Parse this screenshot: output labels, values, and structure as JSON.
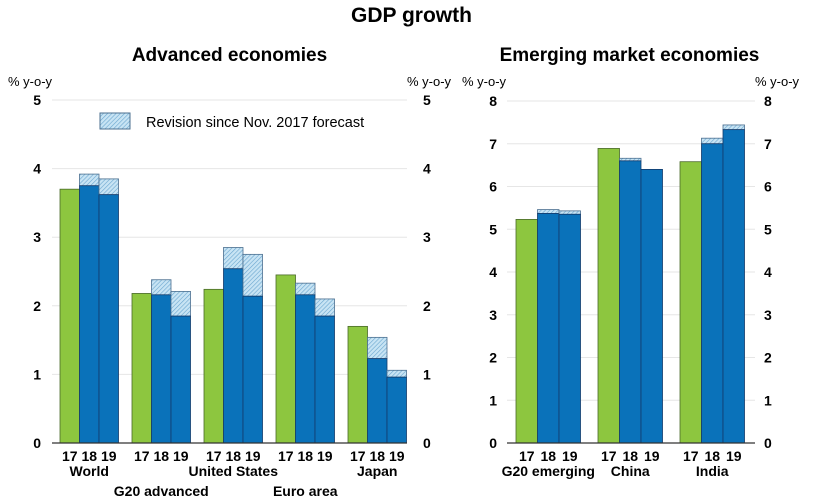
{
  "title": "GDP growth",
  "colors": {
    "actual_2017": "#8dc63f",
    "forecast": "#0a72ba",
    "forecast_border": "#123a6b",
    "revision": "#c8e4f4",
    "revision_hatch": "#6aa6cf",
    "grid": "#e6e6e6"
  },
  "legend": {
    "label": "Revision since Nov. 2017 forecast"
  },
  "chart_data": [
    {
      "type": "bar",
      "title": "Advanced economies",
      "ylabel_left": "% y-o-y",
      "ylabel_right": "% y-o-y",
      "ylim": [
        0,
        5
      ],
      "yticks": [
        0,
        1,
        2,
        3,
        4,
        5
      ],
      "years": [
        "17",
        "18",
        "19"
      ],
      "categories": [
        "World",
        "G20 advanced",
        "United States",
        "Euro area",
        "Japan"
      ],
      "series": [
        {
          "name": "2017",
          "values": [
            3.7,
            2.18,
            2.24,
            2.45,
            1.7
          ]
        },
        {
          "name": "2018 forecast",
          "values": [
            3.75,
            2.16,
            2.54,
            2.16,
            1.23
          ]
        },
        {
          "name": "2019 forecast",
          "values": [
            3.62,
            1.85,
            2.14,
            1.85,
            0.96
          ]
        },
        {
          "name": "2018 revision since Nov. 2017",
          "values": [
            0.17,
            0.22,
            0.31,
            0.17,
            0.31
          ]
        },
        {
          "name": "2019 revision since Nov. 2017",
          "values": [
            0.23,
            0.36,
            0.61,
            0.25,
            0.1
          ]
        }
      ],
      "legend_position": "top"
    },
    {
      "type": "bar",
      "title": "Emerging market economies",
      "ylabel_left": "% y-o-y",
      "ylabel_right": "% y-o-y",
      "ylim": [
        0,
        8
      ],
      "yticks": [
        0,
        1,
        2,
        3,
        4,
        5,
        6,
        7,
        8
      ],
      "years": [
        "17",
        "18",
        "19"
      ],
      "categories": [
        "G20 emerging",
        "China",
        "India"
      ],
      "series": [
        {
          "name": "2017",
          "values": [
            5.23,
            6.89,
            6.58
          ]
        },
        {
          "name": "2018 forecast",
          "values": [
            5.37,
            6.6,
            7.0
          ]
        },
        {
          "name": "2019 forecast",
          "values": [
            5.35,
            6.4,
            7.33
          ]
        },
        {
          "name": "2018 revision since Nov. 2017",
          "values": [
            0.09,
            0.06,
            0.13
          ]
        },
        {
          "name": "2019 revision since Nov. 2017",
          "values": [
            0.08,
            0.0,
            0.11
          ]
        }
      ]
    }
  ]
}
